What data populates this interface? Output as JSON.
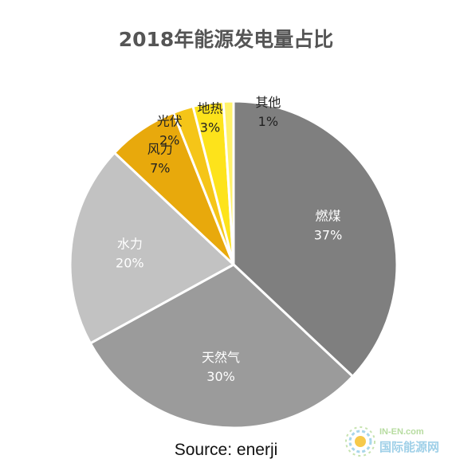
{
  "chart_data": {
    "type": "pie",
    "title": "2018年能源发电量占比",
    "source": "Source: enerji",
    "slices": [
      {
        "name": "燃煤",
        "value": 37,
        "label": "37%",
        "color": "#7f7f7f",
        "label_color": "#ffffff"
      },
      {
        "name": "天然气",
        "value": 30,
        "label": "30%",
        "color": "#9b9b9b",
        "label_color": "#ffffff"
      },
      {
        "name": "水力",
        "value": 20,
        "label": "20%",
        "color": "#c2c2c2",
        "label_color": "#ffffff"
      },
      {
        "name": "风力",
        "value": 7,
        "label": "7%",
        "color": "#e8a90c",
        "label_color": "#222222"
      },
      {
        "name": "光伏",
        "value": 2,
        "label": "2%",
        "color": "#f5c518",
        "label_color": "#222222"
      },
      {
        "name": "地热",
        "value": 3,
        "label": "3%",
        "color": "#fde31b",
        "label_color": "#222222"
      },
      {
        "name": "其他",
        "value": 1,
        "label": "1%",
        "color": "#fff26b",
        "label_color": "#222222"
      }
    ]
  },
  "watermark": {
    "top": "IN-EN.com",
    "bottom": "国际能源网"
  }
}
